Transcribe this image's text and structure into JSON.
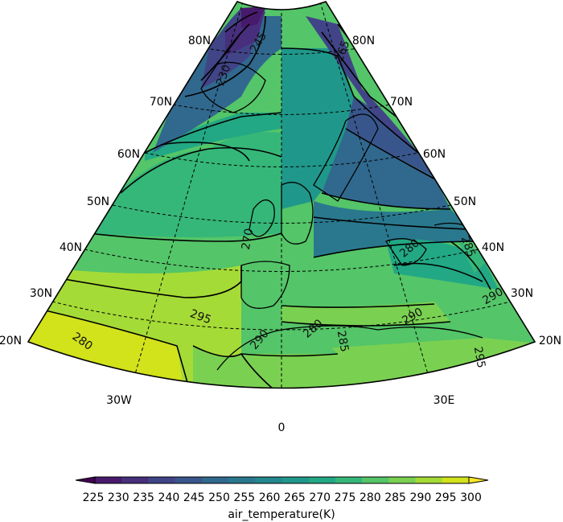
{
  "map": {
    "lat_labels_left": [
      "80N",
      "70N",
      "60N",
      "50N",
      "40N",
      "30N",
      "20N"
    ],
    "lat_labels_right": [
      "80N",
      "70N",
      "60N",
      "50N",
      "40N",
      "30N",
      "20N"
    ],
    "lon_labels": [
      "30W",
      "0",
      "30E"
    ],
    "contour_labels": [
      "230",
      "245",
      "265",
      "270",
      "280",
      "285",
      "290",
      "295",
      "280",
      "290",
      "280",
      "285",
      "290",
      "295"
    ]
  },
  "colorbar": {
    "ticks": [
      "225",
      "230",
      "235",
      "240",
      "245",
      "250",
      "255",
      "260",
      "265",
      "270",
      "275",
      "280",
      "285",
      "290",
      "295",
      "300"
    ],
    "label": "air_temperature(K)",
    "colors": [
      "#440154",
      "#481a6c",
      "#472f7d",
      "#414487",
      "#39568c",
      "#31688e",
      "#2a788e",
      "#23888e",
      "#1f988b",
      "#22a884",
      "#35b779",
      "#54c568",
      "#7ad151",
      "#a5db36",
      "#d2e21b",
      "#fde725"
    ]
  }
}
